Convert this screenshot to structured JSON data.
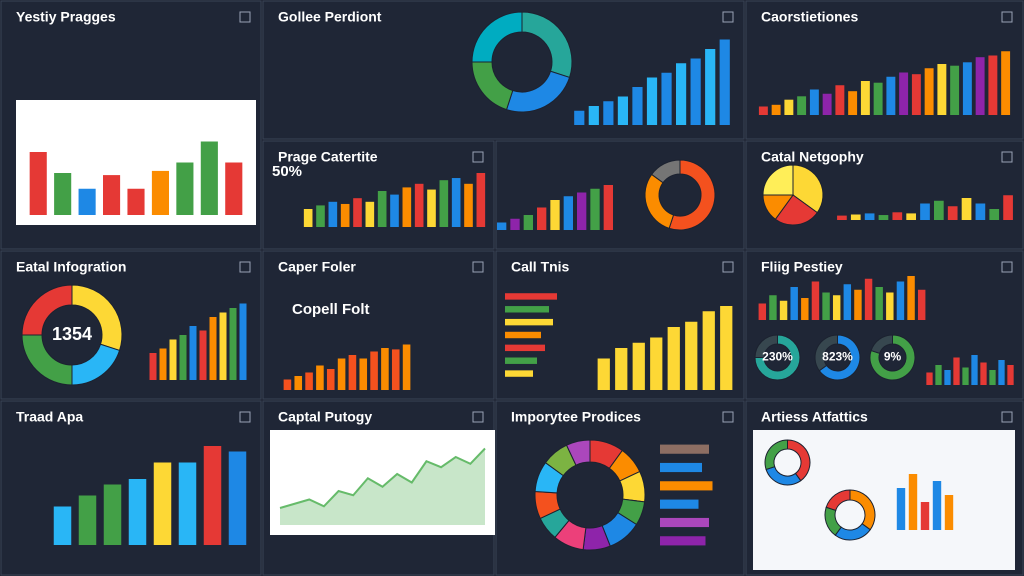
{
  "panels": [
    {
      "title": "Yestiy Pragges",
      "charts": [
        {
          "type": "bar",
          "bg": "#ffffff",
          "values": [
            60,
            40,
            25,
            38,
            25,
            42,
            50,
            70,
            50
          ],
          "colors": [
            "#e53935",
            "#43a047",
            "#1e88e5",
            "#e53935",
            "#e53935",
            "#fb8c00",
            "#43a047",
            "#43a047",
            "#e53935"
          ]
        }
      ]
    },
    {
      "title": "Gollee Perdiont",
      "charts": [
        {
          "type": "donut",
          "values": [
            30,
            25,
            20,
            25
          ],
          "colors": [
            "#26a69a",
            "#1e88e5",
            "#43a047",
            "#00acc1"
          ]
        },
        {
          "type": "bar",
          "values": [
            15,
            20,
            25,
            30,
            40,
            50,
            55,
            65,
            70,
            80,
            90
          ],
          "colors": [
            "#1e88e5",
            "#29b6f6"
          ]
        }
      ]
    },
    {
      "title": "Caorstietiones",
      "charts": [
        {
          "type": "bar",
          "values": [
            10,
            12,
            18,
            22,
            30,
            25,
            35,
            28,
            40,
            38,
            45,
            50,
            48,
            55,
            60,
            58,
            62,
            68,
            70,
            75
          ],
          "colors": [
            "#e53935",
            "#fb8c00",
            "#fdd835",
            "#43a047",
            "#1e88e5",
            "#8e24aa"
          ]
        }
      ]
    },
    {
      "title": "Prage Catertite",
      "subtitle": "50%",
      "charts": [
        {
          "type": "bar",
          "values": [
            25,
            30,
            35,
            32,
            40,
            35,
            50,
            45,
            55,
            60,
            52,
            65,
            68,
            60,
            75
          ],
          "colors": [
            "#fdd835",
            "#43a047",
            "#1e88e5",
            "#fb8c00",
            "#e53935"
          ]
        }
      ]
    },
    {
      "charts": [
        {
          "type": "bar",
          "values": [
            10,
            15,
            20,
            30,
            40,
            45,
            50,
            55,
            60
          ],
          "colors": [
            "#1e88e5",
            "#8e24aa",
            "#43a047",
            "#e53935",
            "#fdd835"
          ]
        },
        {
          "type": "donut",
          "values": [
            55,
            30,
            15
          ],
          "colors": [
            "#f4511e",
            "#fb8c00",
            "#757575"
          ]
        }
      ]
    },
    {
      "title": "Catal Netgophy",
      "charts": [
        {
          "type": "pie",
          "values": [
            35,
            25,
            15,
            25
          ],
          "colors": [
            "#fdd835",
            "#e53935",
            "#fb8c00",
            "#ffee58"
          ]
        },
        {
          "type": "bar",
          "values": [
            8,
            10,
            12,
            9,
            14,
            12,
            30,
            35,
            25,
            40,
            30,
            20,
            45
          ],
          "colors": [
            "#e53935",
            "#fdd835",
            "#1e88e5",
            "#43a047"
          ]
        }
      ]
    },
    {
      "title": "Eatal Infogration",
      "charts": [
        {
          "type": "donut",
          "label": "1354",
          "values": [
            30,
            20,
            25,
            25
          ],
          "colors": [
            "#fdd835",
            "#29b6f6",
            "#43a047",
            "#e53935"
          ]
        },
        {
          "type": "bar",
          "values": [
            30,
            35,
            45,
            50,
            60,
            55,
            70,
            75,
            80,
            85
          ],
          "colors": [
            "#e53935",
            "#fb8c00",
            "#fdd835",
            "#43a047",
            "#1e88e5"
          ]
        }
      ]
    },
    {
      "title": "Caper Foler",
      "subtitle": "Copell Folt",
      "charts": [
        {
          "type": "bar",
          "values": [
            15,
            20,
            25,
            35,
            30,
            45,
            50,
            45,
            55,
            60,
            58,
            65
          ],
          "colors": [
            "#f4511e",
            "#fb8c00"
          ]
        }
      ]
    },
    {
      "title": "Call Tnis",
      "charts": [
        {
          "type": "hbar",
          "values": [
            65,
            55,
            60,
            45,
            50,
            40,
            35
          ],
          "colors": [
            "#e53935",
            "#43a047",
            "#fdd835",
            "#fb8c00"
          ]
        },
        {
          "type": "bar",
          "values": [
            30,
            40,
            45,
            50,
            60,
            65,
            75,
            80
          ],
          "colors": [
            "#fdd835"
          ]
        }
      ]
    },
    {
      "title": "Fliig Pestiey",
      "charts": [
        {
          "type": "bar",
          "values": [
            30,
            45,
            35,
            60,
            40,
            70,
            50,
            45,
            65,
            55,
            75,
            60,
            50,
            70,
            80,
            55
          ],
          "colors": [
            "#e53935",
            "#43a047",
            "#fdd835",
            "#1e88e5",
            "#fb8c00"
          ]
        },
        {
          "type": "donut",
          "label": "230%",
          "values": [
            75,
            25
          ],
          "colors": [
            "#26a69a",
            "#37474f"
          ]
        },
        {
          "type": "donut",
          "label": "823%",
          "values": [
            65,
            35
          ],
          "colors": [
            "#1e88e5",
            "#37474f"
          ]
        },
        {
          "type": "donut",
          "label": "9%",
          "values": [
            80,
            20
          ],
          "colors": [
            "#43a047",
            "#37474f"
          ]
        },
        {
          "type": "bar",
          "values": [
            25,
            40,
            30,
            55,
            35,
            60,
            45,
            30,
            50,
            40
          ],
          "colors": [
            "#e53935",
            "#43a047",
            "#1e88e5"
          ]
        }
      ]
    },
    {
      "title": "Traad Apa",
      "charts": [
        {
          "type": "bar",
          "values": [
            35,
            45,
            55,
            60,
            75,
            75,
            90,
            85
          ],
          "colors": [
            "#29b6f6",
            "#43a047",
            "#43a047",
            "#29b6f6",
            "#fdd835",
            "#29b6f6",
            "#e53935",
            "#1e88e5"
          ]
        }
      ]
    },
    {
      "title": "Captal Putogy",
      "charts": [
        {
          "type": "line",
          "bg": "#ffffff",
          "values": [
            20,
            25,
            30,
            22,
            40,
            35,
            55,
            45,
            60,
            50,
            75,
            68,
            80,
            72,
            90
          ],
          "colors": [
            "#66bb6a",
            "#c8e6c9"
          ]
        }
      ]
    },
    {
      "title": "Imporytee Prodices",
      "charts": [
        {
          "type": "donut",
          "values": [
            10,
            8,
            9,
            7,
            10,
            8,
            9,
            7,
            8,
            9,
            8,
            7
          ],
          "colors": [
            "#e53935",
            "#fb8c00",
            "#fdd835",
            "#43a047",
            "#1e88e5",
            "#8e24aa",
            "#ec407a",
            "#26a69a",
            "#f4511e",
            "#29b6f6",
            "#7cb342",
            "#ab47bc"
          ]
        },
        {
          "type": "hbar",
          "values": [
            70,
            60,
            75,
            55,
            70,
            65
          ],
          "colors": [
            "#8d6e63",
            "#1e88e5",
            "#fb8c00",
            "#1e88e5",
            "#ab47bc",
            "#8e24aa"
          ]
        }
      ]
    },
    {
      "title": "Artiess Atfattics",
      "charts": [
        {
          "type": "donut",
          "values": [
            40,
            30,
            30
          ],
          "colors": [
            "#e53935",
            "#1e88e5",
            "#43a047"
          ]
        },
        {
          "type": "donut",
          "values": [
            35,
            25,
            20,
            20
          ],
          "colors": [
            "#fb8c00",
            "#1e88e5",
            "#43a047",
            "#e53935"
          ]
        },
        {
          "type": "bar",
          "values": [
            60,
            80,
            40,
            70,
            50
          ],
          "colors": [
            "#1e88e5",
            "#fb8c00",
            "#e53935"
          ]
        }
      ]
    }
  ]
}
